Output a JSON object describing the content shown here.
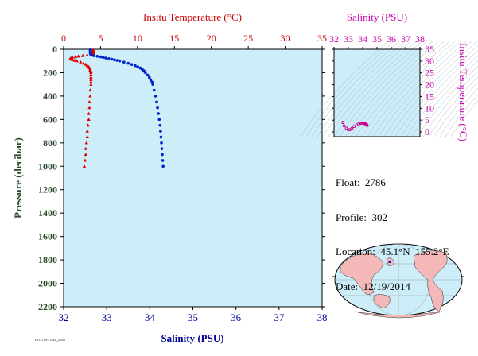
{
  "info": {
    "float": "Float:  2786",
    "profile": "Profile:  302",
    "location": "Location:  45.1°N  155.2°E",
    "date": "Date:  12/19/2014"
  },
  "footer_code": "PLOTS/FLOAT_2786",
  "chart_data": [
    {
      "type": "scatter",
      "title": "",
      "top_axis_label": "Insitu Temperature (°C)",
      "bottom_axis_label": "Salinity (PSU)",
      "ylabel": "Pressure (decibar)",
      "temp_range": [
        0,
        35
      ],
      "sal_range": [
        32,
        38
      ],
      "pressure_range": [
        0,
        2200
      ],
      "temp_ticks": [
        "0",
        "5",
        "10",
        "15",
        "20",
        "25",
        "30",
        "35"
      ],
      "sal_ticks": [
        "32",
        "33",
        "34",
        "35",
        "36",
        "37",
        "38"
      ],
      "pressure_ticks": [
        "0",
        "200",
        "400",
        "600",
        "800",
        "1000",
        "1200",
        "1400",
        "1600",
        "1800",
        "2000",
        "2200"
      ],
      "colors": {
        "temperature": "#dd0000",
        "salinity": "#0022cc",
        "plot_bg": "#cdeef8"
      },
      "temperature_profile": {
        "pressure": [
          5,
          10,
          15,
          20,
          25,
          30,
          35,
          40,
          45,
          50,
          55,
          60,
          65,
          70,
          75,
          80,
          85,
          90,
          95,
          100,
          110,
          120,
          130,
          140,
          150,
          160,
          170,
          180,
          190,
          200,
          220,
          240,
          260,
          280,
          300,
          350,
          400,
          450,
          500,
          550,
          600,
          650,
          700,
          750,
          800,
          850,
          900,
          950,
          1000
        ],
        "temperature": [
          4.0,
          4.0,
          4.0,
          4.0,
          4.0,
          4.0,
          4.0,
          4.0,
          3.9,
          3.2,
          2.6,
          2.0,
          1.6,
          1.2,
          1.0,
          0.9,
          1.0,
          1.2,
          1.5,
          1.8,
          2.3,
          2.7,
          3.0,
          3.2,
          3.4,
          3.5,
          3.6,
          3.6,
          3.7,
          3.7,
          3.7,
          3.7,
          3.7,
          3.7,
          3.7,
          3.6,
          3.6,
          3.5,
          3.5,
          3.4,
          3.4,
          3.3,
          3.2,
          3.2,
          3.1,
          3.0,
          3.0,
          2.9,
          2.8
        ]
      },
      "salinity_profile": {
        "pressure": [
          5,
          10,
          15,
          20,
          25,
          30,
          35,
          40,
          45,
          50,
          55,
          60,
          65,
          70,
          75,
          80,
          85,
          90,
          95,
          100,
          110,
          120,
          130,
          140,
          150,
          160,
          170,
          180,
          190,
          200,
          220,
          240,
          260,
          280,
          300,
          350,
          400,
          450,
          500,
          550,
          600,
          650,
          700,
          750,
          800,
          850,
          900,
          950,
          1000
        ],
        "salinity": [
          32.62,
          32.62,
          32.62,
          32.62,
          32.62,
          32.62,
          32.62,
          32.63,
          32.63,
          32.65,
          32.7,
          32.78,
          32.86,
          32.92,
          32.98,
          33.05,
          33.12,
          33.18,
          33.24,
          33.3,
          33.4,
          33.5,
          33.58,
          33.66,
          33.72,
          33.78,
          33.82,
          33.85,
          33.88,
          33.9,
          33.95,
          33.99,
          34.02,
          34.05,
          34.07,
          34.1,
          34.13,
          34.16,
          34.18,
          34.2,
          34.22,
          34.24,
          34.25,
          34.26,
          34.27,
          34.28,
          34.29,
          34.3,
          34.31
        ]
      }
    },
    {
      "type": "scatter",
      "title": "",
      "top_axis_label": "Salinity (PSU)",
      "ylabel": "Insitu Temperature (°C)",
      "sal_range": [
        32,
        38
      ],
      "temp_range": [
        -2,
        35
      ],
      "sal_ticks": [
        "32",
        "33",
        "34",
        "35",
        "36",
        "37",
        "38"
      ],
      "temp_ticks": [
        "0",
        "5",
        "10",
        "15",
        "20",
        "25",
        "30",
        "35"
      ],
      "color": "#cc0088",
      "ts_points": {
        "salinity": [
          32.62,
          32.63,
          32.7,
          32.86,
          32.98,
          33.12,
          33.24,
          33.4,
          33.58,
          33.72,
          33.82,
          33.9,
          33.99,
          34.05,
          34.1,
          34.16,
          34.2,
          34.24,
          34.26,
          34.28,
          34.3,
          34.31
        ],
        "temperature": [
          4.0,
          4.0,
          2.6,
          1.6,
          1.0,
          1.0,
          1.5,
          2.3,
          3.0,
          3.4,
          3.6,
          3.7,
          3.7,
          3.7,
          3.6,
          3.5,
          3.4,
          3.3,
          3.2,
          3.0,
          2.9,
          2.8
        ]
      }
    }
  ]
}
